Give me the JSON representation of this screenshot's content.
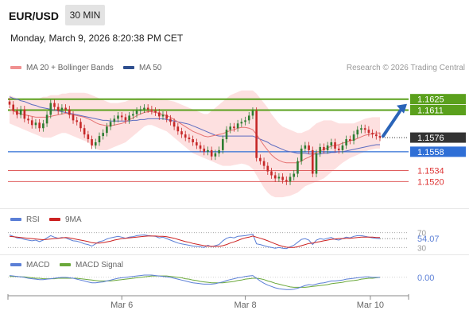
{
  "header": {
    "symbol": "EUR/USD",
    "timeframe": "30 MIN",
    "datetime": "Monday, March 9, 2026 8:20:38 PM CET"
  },
  "legend": {
    "ma20_bb": "MA 20 + Bollinger Bands",
    "ma50": "MA 50",
    "rsi": "RSI",
    "ma9": "9MA",
    "macd": "MACD",
    "macd_signal": "MACD Signal",
    "credit": "Research © 2026 Trading Central"
  },
  "colors": {
    "candle_up": "#2e7d32",
    "candle_down": "#c62828",
    "bb_fill": "#fde0e0",
    "ma20": "#e57373",
    "ma50": "#5c6bc0",
    "resistance": "#5aa01c",
    "pivot": "#2f6fd6",
    "support": "#e06060",
    "rsi": "#5b7fd6",
    "ma9": "#cc2222",
    "macd": "#5b7fd6",
    "signal": "#6aa83a"
  },
  "chart_data": [
    {
      "type": "candlestick",
      "instrument": "EUR/USD",
      "x_ticks": [
        "Mar 6",
        "Mar 8",
        "Mar 10"
      ],
      "last_price": 1.1576,
      "levels": [
        {
          "label": "1.1625",
          "value": 1.1625,
          "kind": "resistance"
        },
        {
          "label": "1.1611",
          "value": 1.1611,
          "kind": "resistance"
        },
        {
          "label": "1.1576",
          "value": 1.1576,
          "kind": "last"
        },
        {
          "label": "1.1558",
          "value": 1.1558,
          "kind": "pivot"
        },
        {
          "label": "1.1534",
          "value": 1.1534,
          "kind": "support"
        },
        {
          "label": "1.1520",
          "value": 1.152,
          "kind": "support"
        }
      ],
      "ylim": [
        1.149,
        1.165
      ],
      "closes": [
        1.1618,
        1.161,
        1.1605,
        1.1612,
        1.16,
        1.1598,
        1.1592,
        1.1595,
        1.1588,
        1.1594,
        1.1605,
        1.162,
        1.1615,
        1.161,
        1.1614,
        1.1612,
        1.1605,
        1.1598,
        1.1596,
        1.1588,
        1.158,
        1.1574,
        1.1566,
        1.157,
        1.1578,
        1.1582,
        1.159,
        1.1596,
        1.16,
        1.1604,
        1.1602,
        1.1598,
        1.1604,
        1.1606,
        1.161,
        1.1612,
        1.1614,
        1.1612,
        1.161,
        1.1608,
        1.1603,
        1.1605,
        1.16,
        1.1596,
        1.159,
        1.1584,
        1.158,
        1.1576,
        1.1574,
        1.157,
        1.1566,
        1.1562,
        1.1558,
        1.156,
        1.1552,
        1.1556,
        1.156,
        1.1574,
        1.1586,
        1.159,
        1.1588,
        1.1594,
        1.1596,
        1.1598,
        1.1604,
        1.161,
        1.155,
        1.1546,
        1.154,
        1.1533,
        1.1528,
        1.1524,
        1.1526,
        1.1522,
        1.152,
        1.1526,
        1.153,
        1.1546,
        1.1562,
        1.1566,
        1.156,
        1.153,
        1.1556,
        1.1564,
        1.156,
        1.1566,
        1.157,
        1.1562,
        1.156,
        1.1566,
        1.1574,
        1.1572,
        1.158,
        1.1586,
        1.1588,
        1.1586,
        1.1582,
        1.158,
        1.1578,
        1.1576
      ],
      "bb_upper": [
        1.163,
        1.1628,
        1.1626,
        1.1625,
        1.1624,
        1.1624,
        1.1624,
        1.1625,
        1.1626,
        1.1628,
        1.1628,
        1.163,
        1.163,
        1.163,
        1.1632,
        1.1632,
        1.1633,
        1.1633,
        1.1633,
        1.1633,
        1.1633,
        1.1632,
        1.163,
        1.1628,
        1.1626,
        1.1624,
        1.1622,
        1.162,
        1.162,
        1.162,
        1.1621,
        1.1622,
        1.1624,
        1.1625,
        1.1626,
        1.1626,
        1.1626,
        1.1626,
        1.1626,
        1.1626,
        1.1625,
        1.1624,
        1.1624,
        1.1623,
        1.1622,
        1.162,
        1.1618,
        1.1616,
        1.1614,
        1.1612,
        1.161,
        1.1608,
        1.1606,
        1.1606,
        1.161,
        1.1614,
        1.1618,
        1.1622,
        1.1626,
        1.163,
        1.1632,
        1.1634,
        1.1636,
        1.1636,
        1.1636,
        1.1636,
        1.1632,
        1.1626,
        1.162,
        1.1614,
        1.1606,
        1.16,
        1.1594,
        1.159,
        1.1588,
        1.1586,
        1.1584,
        1.1582,
        1.1582,
        1.1584,
        1.1586,
        1.159,
        1.1594,
        1.1596,
        1.1598,
        1.1598,
        1.1598,
        1.1596,
        1.1594,
        1.1594,
        1.1594,
        1.1594,
        1.1594,
        1.1596,
        1.1598,
        1.16,
        1.1601,
        1.1602,
        1.1602,
        1.1602
      ],
      "bb_lower": [
        1.1594,
        1.1592,
        1.159,
        1.1588,
        1.1586,
        1.1584,
        1.1582,
        1.158,
        1.1578,
        1.1576,
        1.1576,
        1.1576,
        1.1578,
        1.158,
        1.1582,
        1.1582,
        1.158,
        1.1578,
        1.1576,
        1.1574,
        1.1572,
        1.157,
        1.1566,
        1.1562,
        1.156,
        1.156,
        1.156,
        1.1562,
        1.1564,
        1.1566,
        1.1568,
        1.157,
        1.1574,
        1.1578,
        1.1582,
        1.1586,
        1.159,
        1.1592,
        1.1592,
        1.159,
        1.1588,
        1.1586,
        1.1584,
        1.158,
        1.1576,
        1.1572,
        1.1568,
        1.1564,
        1.156,
        1.1556,
        1.1554,
        1.1552,
        1.155,
        1.1548,
        1.1546,
        1.1544,
        1.1542,
        1.154,
        1.154,
        1.154,
        1.1541,
        1.1542,
        1.1543,
        1.1542,
        1.154,
        1.1536,
        1.1528,
        1.152,
        1.1512,
        1.1506,
        1.1502,
        1.15,
        1.15,
        1.15,
        1.1501,
        1.1502,
        1.1504,
        1.1506,
        1.151,
        1.1514,
        1.1516,
        1.1518,
        1.152,
        1.1522,
        1.1524,
        1.1528,
        1.1532,
        1.1536,
        1.154,
        1.1544,
        1.1547,
        1.155,
        1.1552,
        1.1554,
        1.1556,
        1.1558,
        1.156,
        1.1561,
        1.1562,
        1.1562
      ],
      "ma20": [
        1.1612,
        1.161,
        1.1608,
        1.1606,
        1.1605,
        1.1604,
        1.1603,
        1.1602,
        1.1602,
        1.1602,
        1.1602,
        1.1603,
        1.1604,
        1.1605,
        1.1606,
        1.1607,
        1.1606,
        1.1605,
        1.1604,
        1.1603,
        1.1602,
        1.16,
        1.1598,
        1.1595,
        1.1593,
        1.1592,
        1.1591,
        1.1591,
        1.1592,
        1.1593,
        1.1594,
        1.1596,
        1.1599,
        1.1601,
        1.1604,
        1.1606,
        1.1608,
        1.1609,
        1.1609,
        1.1608,
        1.1607,
        1.1605,
        1.1604,
        1.1602,
        1.1599,
        1.1596,
        1.1593,
        1.159,
        1.1587,
        1.1584,
        1.1582,
        1.158,
        1.1578,
        1.1577,
        1.1578,
        1.1579,
        1.158,
        1.1581,
        1.1583,
        1.1585,
        1.1586,
        1.1588,
        1.1589,
        1.1589,
        1.1588,
        1.1586,
        1.158,
        1.1573,
        1.1566,
        1.156,
        1.1554,
        1.155,
        1.1547,
        1.1545,
        1.1544,
        1.1544,
        1.1544,
        1.1544,
        1.1546,
        1.1549,
        1.1551,
        1.1554,
        1.1557,
        1.1559,
        1.1561,
        1.1563,
        1.1565,
        1.1566,
        1.1567,
        1.1569,
        1.157,
        1.1572,
        1.1573,
        1.1575,
        1.1577,
        1.1579,
        1.158,
        1.1581,
        1.1582,
        1.1582
      ],
      "ma50": [
        1.1628,
        1.1626,
        1.1625,
        1.1623,
        1.1622,
        1.162,
        1.1618,
        1.1617,
        1.1615,
        1.1614,
        1.1613,
        1.1612,
        1.1611,
        1.161,
        1.1609,
        1.1608,
        1.1607,
        1.1606,
        1.1605,
        1.1604,
        1.1603,
        1.1602,
        1.1601,
        1.16,
        1.1599,
        1.1598,
        1.1598,
        1.1597,
        1.1597,
        1.1597,
        1.1597,
        1.1597,
        1.1597,
        1.1598,
        1.1598,
        1.1599,
        1.1599,
        1.16,
        1.16,
        1.16,
        1.16,
        1.16,
        1.1599,
        1.1598,
        1.1597,
        1.1596,
        1.1595,
        1.1594,
        1.1593,
        1.1591,
        1.1589,
        1.1587,
        1.1585,
        1.1583,
        1.1581,
        1.1579,
        1.1578,
        1.1578,
        1.1578,
        1.1578,
        1.1578,
        1.1578,
        1.1578,
        1.1578,
        1.1578,
        1.1578,
        1.1576,
        1.1574,
        1.1572,
        1.157,
        1.1567,
        1.1565,
        1.1563,
        1.1561,
        1.1559,
        1.1558,
        1.1557,
        1.1556,
        1.1556,
        1.1556,
        1.1555,
        1.1555,
        1.1555,
        1.1555,
        1.1556,
        1.1556,
        1.1557,
        1.1557,
        1.1558,
        1.1558,
        1.1559,
        1.156,
        1.1561,
        1.1562,
        1.1563,
        1.1564,
        1.1565,
        1.1566,
        1.1567,
        1.1567
      ]
    },
    {
      "type": "line",
      "name": "RSI",
      "ylim": [
        20,
        80
      ],
      "levels": [
        70,
        30
      ],
      "last_value": "54.07",
      "rsi": [
        64,
        60,
        56,
        55,
        52,
        50,
        48,
        50,
        46,
        50,
        56,
        62,
        58,
        55,
        57,
        56,
        52,
        48,
        47,
        44,
        40,
        38,
        34,
        40,
        46,
        48,
        53,
        56,
        58,
        60,
        58,
        55,
        58,
        59,
        62,
        63,
        64,
        62,
        61,
        60,
        56,
        58,
        54,
        50,
        46,
        42,
        40,
        38,
        36,
        34,
        33,
        32,
        30,
        36,
        32,
        35,
        38,
        48,
        55,
        58,
        56,
        60,
        61,
        62,
        64,
        66,
        40,
        38,
        35,
        32,
        30,
        28,
        30,
        28,
        27,
        32,
        36,
        44,
        52,
        54,
        50,
        38,
        50,
        54,
        52,
        55,
        57,
        52,
        50,
        54,
        58,
        56,
        60,
        62,
        62,
        60,
        58,
        56,
        55,
        54.07
      ],
      "ma9": [
        60,
        59,
        58,
        57,
        56,
        55,
        54,
        53,
        52,
        51,
        52,
        53,
        54,
        55,
        56,
        57,
        56,
        54,
        52,
        50,
        48,
        46,
        43,
        42,
        42,
        43,
        45,
        47,
        50,
        52,
        54,
        55,
        56,
        57,
        58,
        59,
        60,
        61,
        61,
        61,
        60,
        60,
        59,
        57,
        55,
        52,
        49,
        46,
        44,
        41,
        39,
        37,
        35,
        34,
        33,
        33,
        33,
        35,
        38,
        42,
        45,
        49,
        53,
        56,
        58,
        61,
        58,
        55,
        52,
        48,
        44,
        40,
        36,
        33,
        31,
        30,
        30,
        32,
        35,
        38,
        41,
        42,
        44,
        46,
        48,
        50,
        52,
        53,
        54,
        54,
        55,
        55,
        56,
        57,
        58,
        58,
        58,
        58,
        57,
        57
      ]
    },
    {
      "type": "line",
      "name": "MACD",
      "ylim": [
        -0.003,
        0.0012
      ],
      "last_value": "0.00",
      "macd": [
        0.0004,
        0.0003,
        0.0002,
        0.0001,
        0.0,
        -0.0002,
        -0.0003,
        -0.0004,
        -0.0005,
        -0.0005,
        -0.0004,
        -0.0003,
        -0.0002,
        -0.0001,
        0.0,
        0.0,
        -0.0001,
        -0.0002,
        -0.0004,
        -0.0006,
        -0.0008,
        -0.001,
        -0.0012,
        -0.0012,
        -0.0011,
        -0.001,
        -0.0008,
        -0.0006,
        -0.0004,
        -0.0002,
        -0.0001,
        0.0,
        0.0001,
        0.0002,
        0.0003,
        0.0004,
        0.0005,
        0.0005,
        0.0005,
        0.0004,
        0.0003,
        0.0002,
        0.0001,
        0.0,
        -0.0002,
        -0.0004,
        -0.0006,
        -0.0008,
        -0.001,
        -0.0012,
        -0.0013,
        -0.0014,
        -0.0015,
        -0.0015,
        -0.0015,
        -0.0014,
        -0.0012,
        -0.001,
        -0.0007,
        -0.0005,
        -0.0003,
        -0.0001,
        0.0,
        0.0002,
        0.0003,
        0.0004,
        -0.0002,
        -0.0008,
        -0.0013,
        -0.0017,
        -0.002,
        -0.0023,
        -0.0025,
        -0.0026,
        -0.0027,
        -0.0027,
        -0.0026,
        -0.0024,
        -0.0021,
        -0.0018,
        -0.0016,
        -0.0017,
        -0.0015,
        -0.0013,
        -0.0012,
        -0.001,
        -0.0008,
        -0.0008,
        -0.0007,
        -0.0006,
        -0.0004,
        -0.0003,
        -0.0002,
        -0.0001,
        0.0,
        0.0001,
        0.0001,
        0.0,
        0.0,
        0.0
      ],
      "signal": [
        0.0002,
        0.0002,
        0.0002,
        0.0001,
        0.0001,
        0.0,
        -0.0001,
        -0.0002,
        -0.0002,
        -0.0003,
        -0.0003,
        -0.0003,
        -0.0003,
        -0.0002,
        -0.0002,
        -0.0002,
        -0.0002,
        -0.0002,
        -0.0002,
        -0.0003,
        -0.0004,
        -0.0005,
        -0.0006,
        -0.0007,
        -0.0008,
        -0.0008,
        -0.0008,
        -0.0008,
        -0.0007,
        -0.0006,
        -0.0005,
        -0.0004,
        -0.0003,
        -0.0002,
        -0.0001,
        0.0,
        0.0001,
        0.0002,
        0.0003,
        0.0003,
        0.0003,
        0.0003,
        0.0003,
        0.0002,
        0.0001,
        0.0,
        -0.0001,
        -0.0003,
        -0.0004,
        -0.0006,
        -0.0007,
        -0.0009,
        -0.001,
        -0.0011,
        -0.0012,
        -0.0012,
        -0.0012,
        -0.0012,
        -0.0011,
        -0.001,
        -0.0009,
        -0.0007,
        -0.0006,
        -0.0004,
        -0.0003,
        -0.0002,
        -0.0002,
        -0.0003,
        -0.0005,
        -0.0008,
        -0.001,
        -0.0013,
        -0.0015,
        -0.0017,
        -0.0019,
        -0.0021,
        -0.0022,
        -0.0022,
        -0.0022,
        -0.0022,
        -0.0021,
        -0.002,
        -0.0019,
        -0.0018,
        -0.0017,
        -0.0016,
        -0.0014,
        -0.0013,
        -0.0012,
        -0.0011,
        -0.0009,
        -0.0008,
        -0.0007,
        -0.0006,
        -0.0004,
        -0.0003,
        -0.0002,
        -0.0002,
        -0.0001,
        0.0
      ]
    }
  ]
}
